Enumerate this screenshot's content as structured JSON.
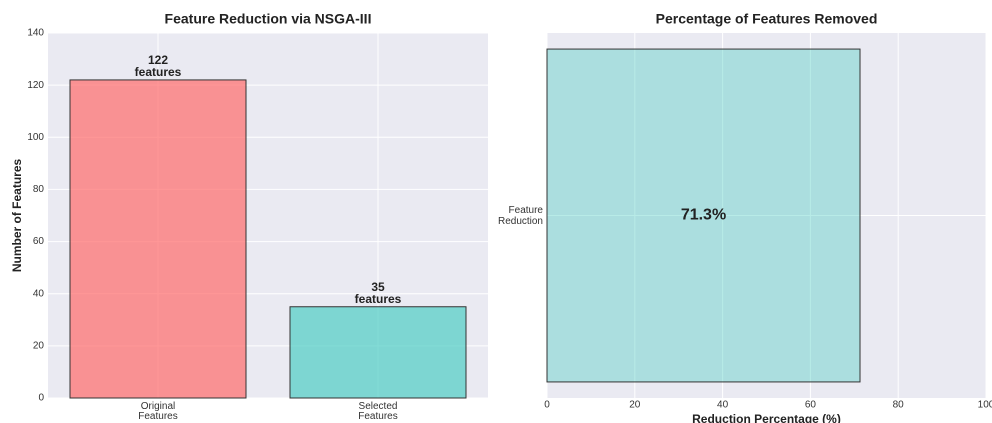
{
  "chart_data": [
    {
      "type": "bar",
      "title": "Feature Reduction via NSGA-III",
      "ylabel": "Number of Features",
      "categories": [
        "Original\nFeatures",
        "Selected\nFeatures"
      ],
      "values": [
        122,
        35
      ],
      "value_labels": [
        "122\nfeatures",
        "35\nfeatures"
      ],
      "colors": [
        "#ff6b6b",
        "#4ecdc4"
      ],
      "ylim": [
        0,
        140
      ],
      "yticks": [
        0,
        20,
        40,
        60,
        80,
        100,
        120,
        140
      ],
      "grid": true
    },
    {
      "type": "barh",
      "title": "Percentage of Features Removed",
      "xlabel": "Reduction Percentage (%)",
      "categories": [
        "Feature\nReduction"
      ],
      "values": [
        71.3
      ],
      "value_labels": [
        "71.3%"
      ],
      "color": "#4ecdc4",
      "xlim": [
        0,
        100
      ],
      "xticks": [
        0,
        20,
        40,
        60,
        80,
        100
      ],
      "grid": true
    }
  ]
}
